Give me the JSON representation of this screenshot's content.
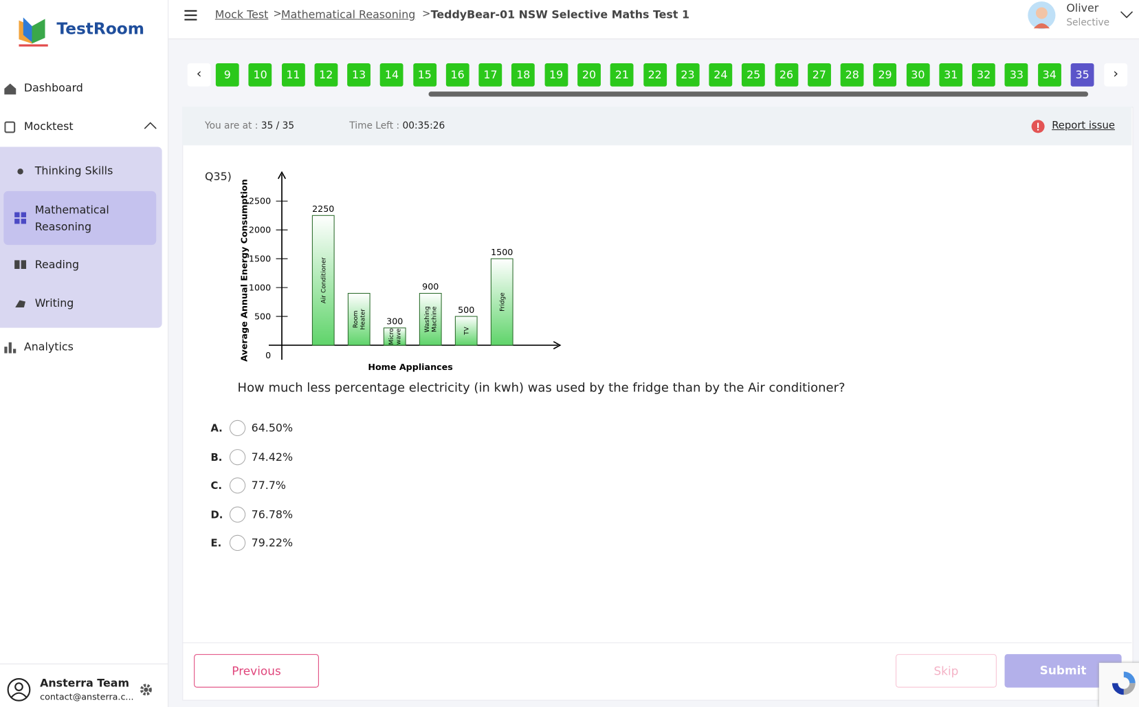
{
  "sidebar": {
    "brand": "TestRoom",
    "nav": [
      "Dashboard",
      "Mocktest",
      "Analytics"
    ],
    "submenu": [
      "Thinking Skills",
      "Mathematical Reasoning",
      "Reading",
      "Writing"
    ],
    "user": {
      "name": "Ansterra Team",
      "email": "contact@ansterra.c..."
    }
  },
  "header": {
    "breadcrumb": [
      "Mock Test",
      "Mathematical Reasoning",
      "TeddyBear-01 NSW Selective Maths Test 1"
    ],
    "separator": ">",
    "user": {
      "name": "Oliver",
      "role": "Selective"
    }
  },
  "question_nav": {
    "numbers": [
      9,
      10,
      11,
      12,
      13,
      14,
      15,
      16,
      17,
      18,
      19,
      20,
      21,
      22,
      23,
      24,
      25,
      26,
      27,
      28,
      29,
      30,
      31,
      32,
      33,
      34,
      35
    ],
    "current": 35
  },
  "status": {
    "position_label": "You are at :",
    "position": "35 / 35",
    "time_label": "Time Left :",
    "time": "00:35:26",
    "report": "Report issue"
  },
  "question": {
    "number": "Q35)",
    "text": "How much less percentage electricity (in kwh) was used by the fridge than by the Air conditioner?",
    "options": [
      {
        "letter": "A.",
        "text": "64.50%"
      },
      {
        "letter": "B.",
        "text": "74.42%"
      },
      {
        "letter": "C.",
        "text": "77.7%"
      },
      {
        "letter": "D.",
        "text": "76.78%"
      },
      {
        "letter": "E.",
        "text": "79.22%"
      }
    ]
  },
  "chart_data": {
    "type": "bar",
    "x_label": "Home Appliances",
    "y_label": "Average Annual Energy Consumption",
    "categories": [
      "Air Conditioner",
      "Room\nHeater",
      "Micro\nwave",
      "Washing\nMachine",
      "TV",
      "Fridge"
    ],
    "values": [
      2250,
      900,
      300,
      900,
      500,
      1500
    ],
    "value_labels": [
      "2250",
      null,
      "300",
      "900",
      "500",
      "1500"
    ],
    "ylim": [
      0,
      3000
    ],
    "yticks": [
      0,
      500,
      1000,
      1500,
      2000,
      2500
    ],
    "color": "#5fd46a"
  },
  "buttons": {
    "previous": "Previous",
    "skip": "Skip",
    "submit": "Submit"
  }
}
